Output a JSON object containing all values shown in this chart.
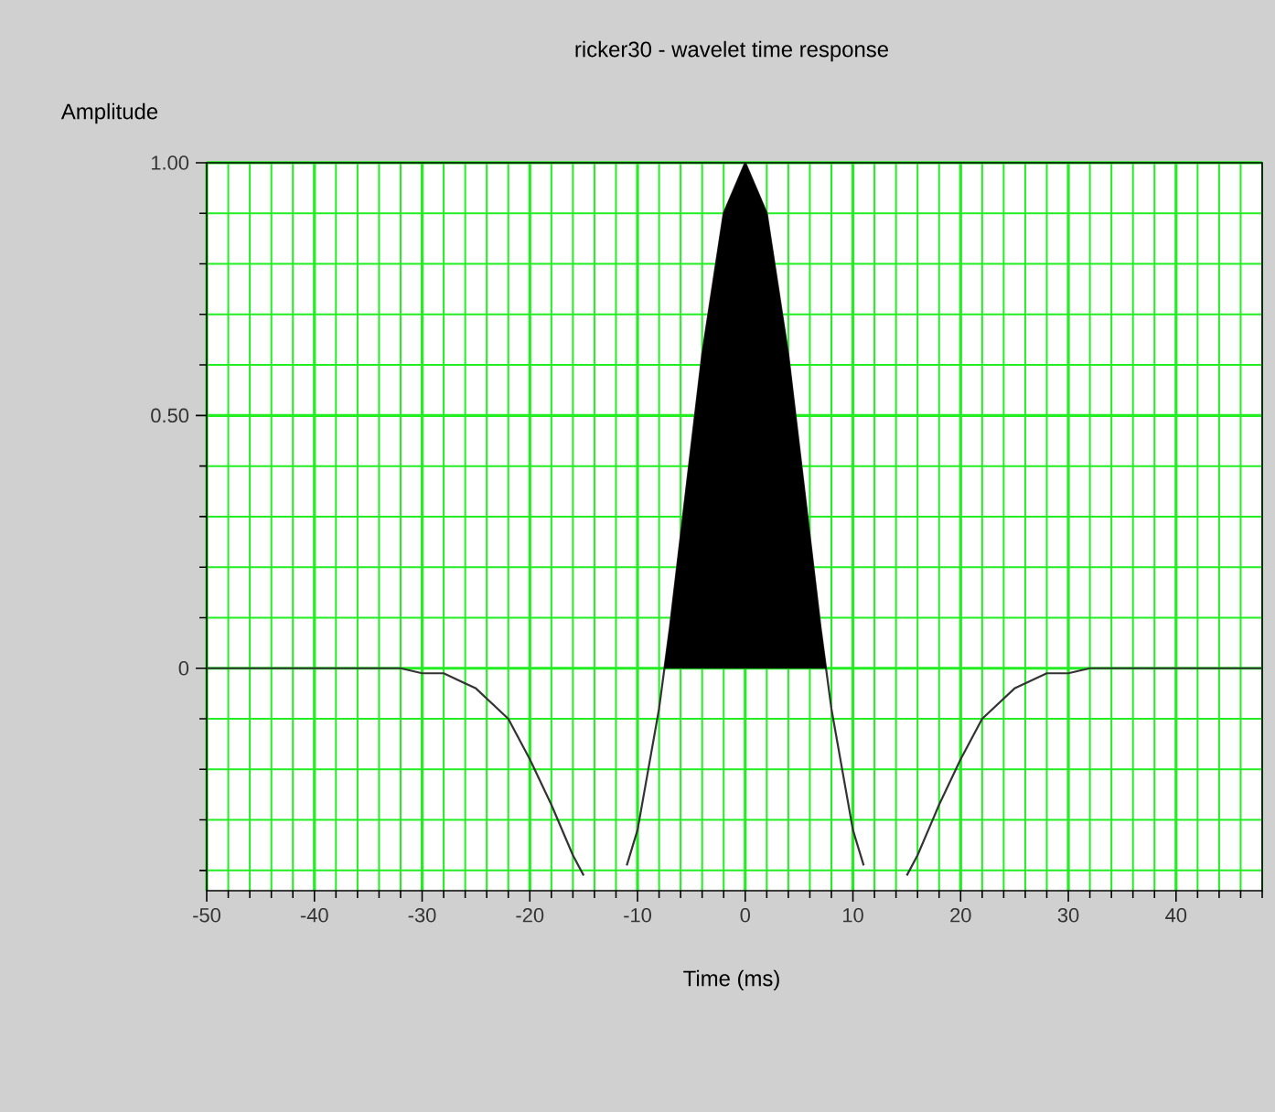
{
  "chart_data": {
    "type": "line",
    "title": "ricker30 - wavelet time response",
    "xlabel": "Time (ms)",
    "ylabel": "Amplitude",
    "series": [
      {
        "color": "#333333",
        "x": [
          -50,
          -40,
          -36,
          -32,
          -30,
          -28,
          -25,
          -22,
          -20,
          -18,
          -16,
          -15,
          -13,
          -11,
          -10,
          -8,
          -7.5,
          -7,
          -6,
          -4,
          -2,
          0,
          2,
          4,
          6,
          7,
          7.5,
          8,
          10,
          11,
          13,
          15,
          16,
          18,
          20,
          22,
          25,
          28,
          30,
          32,
          36,
          40,
          48
        ],
        "values": [
          0,
          0,
          0,
          0,
          -0.01,
          -0.01,
          -0.04,
          -0.1,
          -0.18,
          -0.27,
          -0.37,
          -0.41,
          null,
          -0.39,
          -0.32,
          -0.08,
          0,
          0.08,
          0.26,
          0.62,
          0.9,
          1,
          0.9,
          0.62,
          0.26,
          0.08,
          0,
          -0.08,
          -0.32,
          -0.39,
          null,
          -0.41,
          -0.37,
          -0.27,
          -0.18,
          -0.1,
          -0.04,
          -0.01,
          -0.01,
          0,
          0,
          0,
          0
        ]
      },
      {
        "type": "area",
        "color": "#000000",
        "x": [
          -7.5,
          -7,
          -6,
          -4,
          -2,
          0,
          2,
          4,
          6,
          7,
          7.5
        ],
        "values": [
          0,
          0.08,
          0.26,
          0.62,
          0.9,
          1,
          0.9,
          0.62,
          0.26,
          0.08,
          0
        ]
      }
    ],
    "xlim": [
      -50,
      48
    ],
    "ylim": [
      -0.44,
      1
    ],
    "xticks": [
      -50,
      -40,
      -30,
      -20,
      -10,
      0,
      10,
      20,
      30,
      40,
      {
        "value": -48,
        "label": null
      },
      {
        "value": -46,
        "label": null
      },
      {
        "value": -44,
        "label": null
      },
      {
        "value": -42,
        "label": null
      },
      {
        "value": -38,
        "label": null
      },
      {
        "value": -36,
        "label": null
      },
      {
        "value": -34,
        "label": null
      },
      {
        "value": -32,
        "label": null
      },
      {
        "value": -28,
        "label": null
      },
      {
        "value": -26,
        "label": null
      },
      {
        "value": -24,
        "label": null
      },
      {
        "value": -22,
        "label": null
      },
      {
        "value": -18,
        "label": null
      },
      {
        "value": -16,
        "label": null
      },
      {
        "value": -14,
        "label": null
      },
      {
        "value": -12,
        "label": null
      },
      {
        "value": -8,
        "label": null
      },
      {
        "value": -6,
        "label": null
      },
      {
        "value": -4,
        "label": null
      },
      {
        "value": -2,
        "label": null
      },
      {
        "value": 2,
        "label": null
      },
      {
        "value": 4,
        "label": null
      },
      {
        "value": 6,
        "label": null
      },
      {
        "value": 8,
        "label": null
      },
      {
        "value": 12,
        "label": null
      },
      {
        "value": 14,
        "label": null
      },
      {
        "value": 16,
        "label": null
      },
      {
        "value": 18,
        "label": null
      },
      {
        "value": 22,
        "label": null
      },
      {
        "value": 24,
        "label": null
      },
      {
        "value": 26,
        "label": null
      },
      {
        "value": 28,
        "label": null
      },
      {
        "value": 32,
        "label": null
      },
      {
        "value": 34,
        "label": null
      },
      {
        "value": 36,
        "label": null
      },
      {
        "value": 38,
        "label": null
      },
      {
        "value": 42,
        "label": null
      },
      {
        "value": 44,
        "label": null
      },
      {
        "value": 46,
        "label": null
      },
      {
        "value": 48,
        "label": null
      }
    ],
    "yticks": [
      {
        "value": 1,
        "label": "1.00"
      },
      {
        "value": 0.5,
        "label": "0.50"
      },
      0,
      {
        "value": 0.9,
        "label": null
      },
      {
        "value": 0.8,
        "label": null
      },
      {
        "value": 0.7,
        "label": null
      },
      {
        "value": 0.6,
        "label": null
      },
      {
        "value": 0.4,
        "label": null
      },
      {
        "value": 0.3,
        "label": null
      },
      {
        "value": 0.2,
        "label": null
      },
      {
        "value": 0.1,
        "label": null
      },
      {
        "value": -0.1,
        "label": null
      },
      {
        "value": -0.2,
        "label": null
      },
      {
        "value": -0.3,
        "label": null
      },
      {
        "value": -0.4,
        "label": null
      }
    ],
    "grid": true
  }
}
